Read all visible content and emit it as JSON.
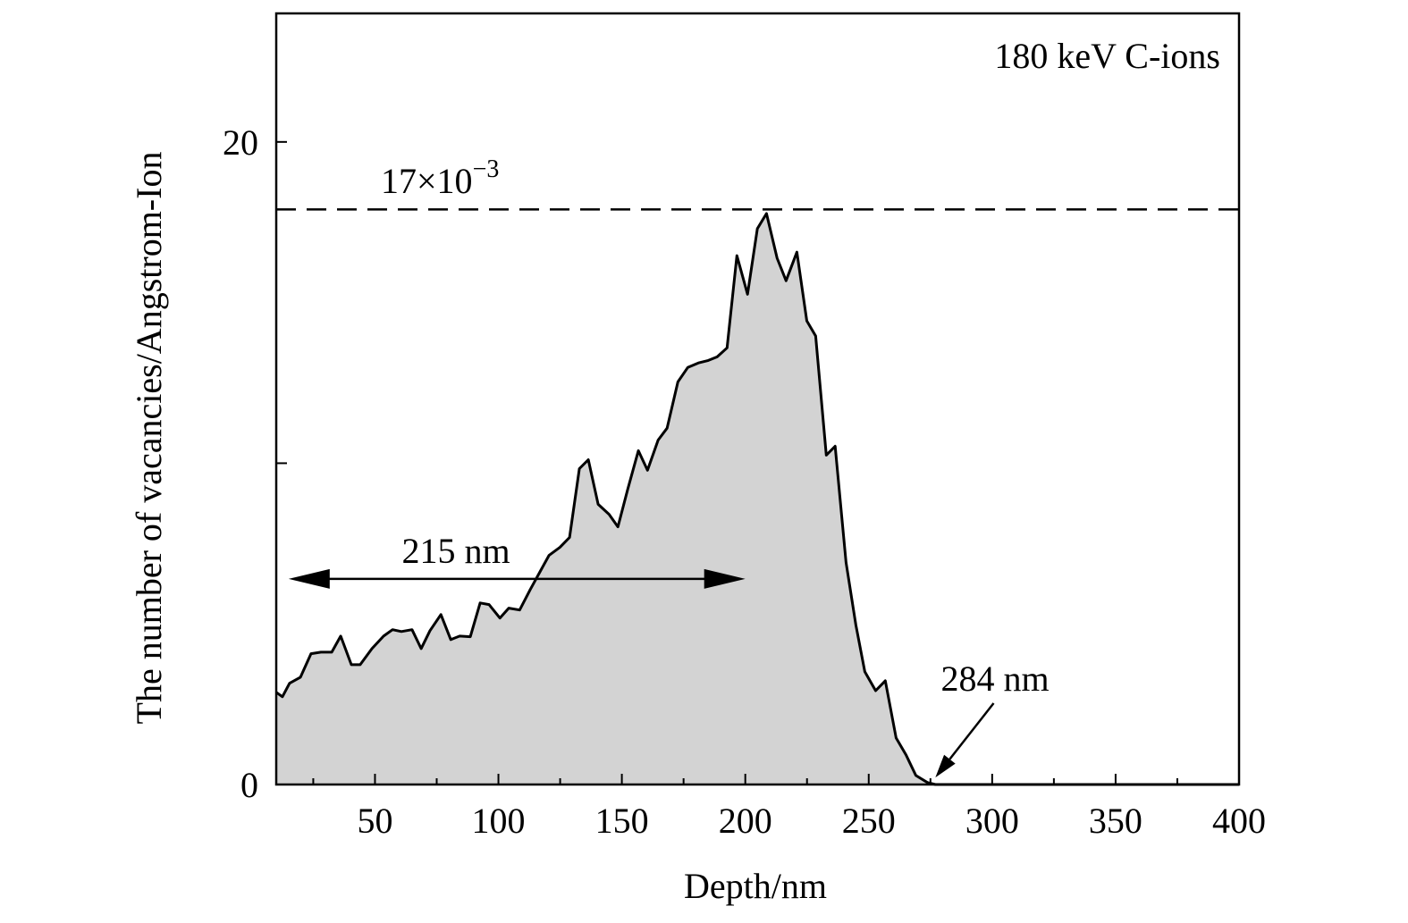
{
  "chart_data": {
    "type": "area",
    "xlabel": "Depth/nm",
    "ylabel": "The number of vacancies/Angstrom-Ion",
    "xlim": [
      10,
      400
    ],
    "ylim": [
      0,
      24
    ],
    "x_ticks_major": [
      50,
      100,
      150,
      200,
      250,
      300,
      350,
      400
    ],
    "x_tick_labels": [
      "50",
      "100",
      "150",
      "200",
      "250",
      "300",
      "350",
      "400"
    ],
    "x_ticks_minor": [
      25,
      75,
      125,
      175,
      225,
      275,
      325,
      375
    ],
    "y_ticks": [
      0,
      10,
      20
    ],
    "y_tick_labels": [
      "0",
      "",
      "20"
    ],
    "grid": false,
    "fill_color": "#d3d3d3",
    "line_color": "#000000",
    "series": [
      {
        "x": [
          10,
          12.5,
          15.4,
          19.8,
          24.1,
          28.1,
          32.5,
          36.1,
          40.4,
          44,
          48.8,
          53.5,
          57.1,
          60.7,
          65,
          68.7,
          72.3,
          76.7,
          80.7,
          84.3,
          88.6,
          92.6,
          96.2,
          100.6,
          104.2,
          108.6,
          112.9,
          116.9,
          120.5,
          124.9,
          128.8,
          132.8,
          136.4,
          140.4,
          144.8,
          148.4,
          152.4,
          156.7,
          160.4,
          164.7,
          168.3,
          172.7,
          176.7,
          181,
          185,
          188.6,
          192.6,
          196.6,
          200.9,
          204.9,
          208.6,
          212.9,
          216.5,
          220.9,
          224.9,
          228.5,
          232.8,
          236.4,
          240.8,
          244.8,
          248.4,
          252.8,
          256.7,
          261.1,
          265.1,
          269.1,
          273.8,
          277,
          400
        ],
        "y": [
          2.87,
          2.73,
          3.15,
          3.34,
          4.07,
          4.12,
          4.12,
          4.62,
          3.73,
          3.73,
          4.23,
          4.62,
          4.82,
          4.76,
          4.82,
          4.23,
          4.79,
          5.29,
          4.51,
          4.62,
          4.6,
          5.65,
          5.6,
          5.18,
          5.49,
          5.43,
          6.07,
          6.63,
          7.13,
          7.38,
          7.69,
          9.83,
          10.11,
          8.72,
          8.41,
          8.02,
          9.19,
          10.39,
          9.78,
          10.72,
          11.09,
          12.53,
          12.98,
          13.12,
          13.2,
          13.31,
          13.59,
          16.46,
          15.26,
          17.3,
          17.77,
          16.38,
          15.68,
          16.57,
          14.43,
          13.96,
          10.25,
          10.53,
          6.91,
          4.96,
          3.51,
          2.92,
          3.23,
          1.45,
          0.92,
          0.28,
          0.06,
          0,
          0
        ]
      }
    ],
    "annotations": {
      "legend_text": "180 keV C-ions",
      "dashed_line": {
        "y": 17.9,
        "label_base": "17×10",
        "label_exp": "−3"
      },
      "range_arrow": {
        "x_from": 15,
        "x_to": 200,
        "y": 6.4,
        "label": "215 nm"
      },
      "end_arrow": {
        "x_from": 300.6,
        "y_from": 2.53,
        "x_to": 277,
        "y_to": 0.22,
        "label": "284 nm"
      }
    }
  }
}
